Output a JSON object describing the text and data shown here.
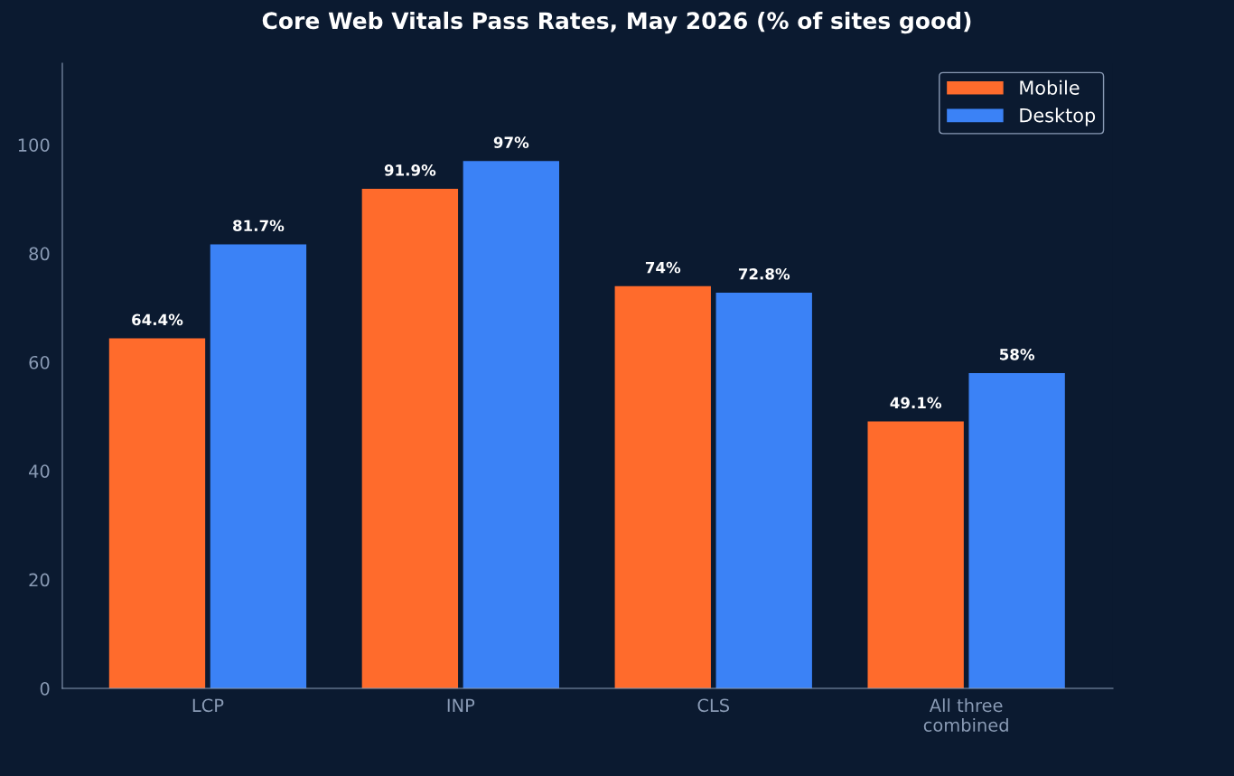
{
  "chart_data": {
    "type": "bar",
    "title": "Core Web Vitals Pass Rates, May 2026 (% of sites good)",
    "categories": [
      "LCP",
      "INP",
      "CLS",
      "All three\ncombined"
    ],
    "series": [
      {
        "name": "Mobile",
        "color": "#ff6b2c",
        "values": [
          64.4,
          91.9,
          74,
          49.1
        ],
        "value_labels": [
          "64.4%",
          "91.9%",
          "74%",
          "49.1%"
        ]
      },
      {
        "name": "Desktop",
        "color": "#3b82f6",
        "values": [
          81.7,
          97,
          72.8,
          58
        ],
        "value_labels": [
          "81.7%",
          "97%",
          "72.8%",
          "58%"
        ]
      }
    ],
    "ylim": [
      0,
      115
    ],
    "yticks": [
      0,
      20,
      40,
      60,
      80,
      100
    ],
    "grid": false,
    "legend": "top right"
  }
}
